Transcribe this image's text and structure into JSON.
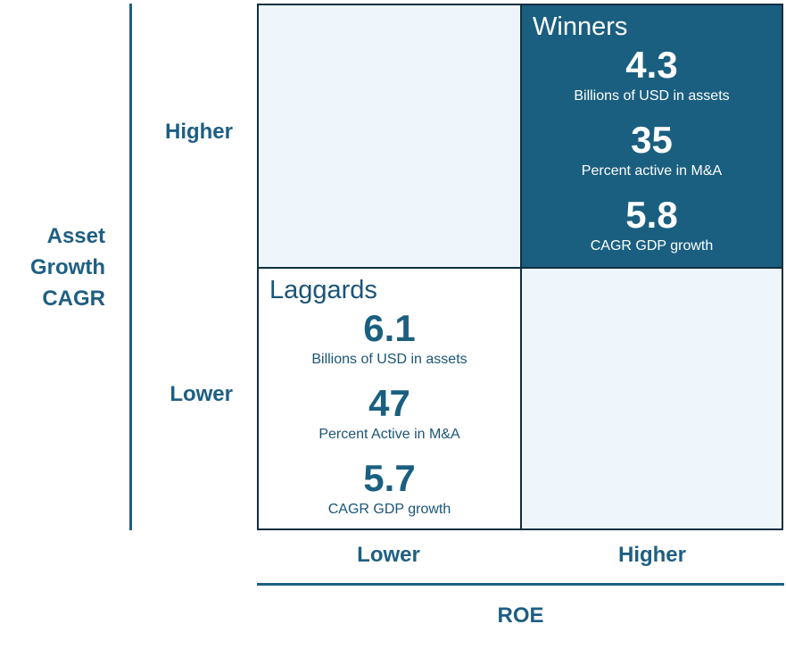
{
  "y_axis": {
    "title_lines": [
      "Asset",
      "Growth",
      "CAGR"
    ],
    "high_label": "Higher",
    "low_label": "Lower"
  },
  "x_axis": {
    "title": "ROE",
    "low_label": "Lower",
    "high_label": "Higher"
  },
  "quadrants": {
    "winners": {
      "name": "Winners",
      "metrics": [
        {
          "value": "4.3",
          "label": "Billions of USD in assets"
        },
        {
          "value": "35",
          "label": "Percent active in M&A"
        },
        {
          "value": "5.8",
          "label": "CAGR GDP growth"
        }
      ]
    },
    "laggards": {
      "name": "Laggards",
      "metrics": [
        {
          "value": "6.1",
          "label": "Billions of USD in assets"
        },
        {
          "value": "47",
          "label": "Percent Active in M&A"
        },
        {
          "value": "5.7",
          "label": "CAGR GDP growth"
        }
      ]
    }
  },
  "colors": {
    "highlight_fill": "#1a5f80",
    "light_fill": "#eef6fc",
    "axis_blue": "#1e5f82"
  }
}
